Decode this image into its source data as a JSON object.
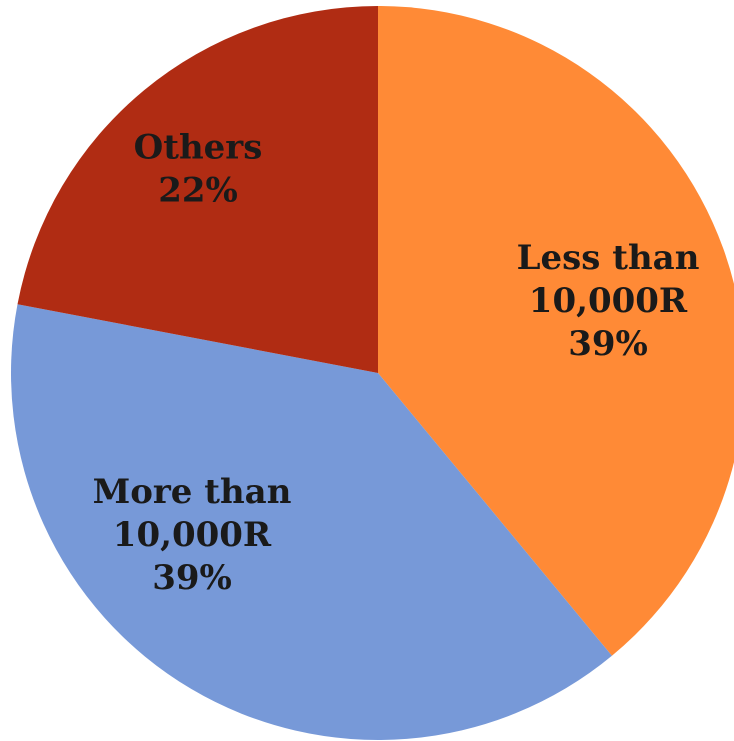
{
  "chart_data": {
    "type": "pie",
    "title": "",
    "slices": [
      {
        "line1": "Less than",
        "line2": "10,000R",
        "pct_label": "39%",
        "value": 39,
        "color": "#FF8A36"
      },
      {
        "line1": "More than",
        "line2": "10,000R",
        "pct_label": "39%",
        "value": 39,
        "color": "#7799D8"
      },
      {
        "line1": "Others",
        "line2": "",
        "pct_label": "22%",
        "value": 22,
        "color": "#B02C13"
      }
    ],
    "start_angle_deg": 0,
    "direction": "clockwise"
  }
}
